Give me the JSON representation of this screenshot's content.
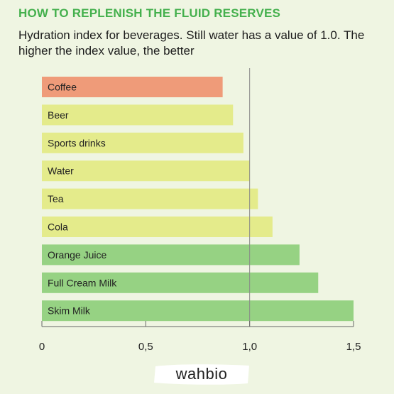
{
  "chart_data": {
    "type": "bar",
    "orientation": "horizontal",
    "title": "HOW TO REPLENISH THE FLUID RESERVES",
    "subtitle": "Hydration index for beverages. Still water has a value of 1.0. The higher the index value, the better",
    "categories": [
      "Coffee",
      "Beer",
      "Sports drinks",
      "Water",
      "Tea",
      "Cola",
      "Orange Juice",
      "Full Cream Milk",
      "Skim Milk"
    ],
    "values": [
      0.87,
      0.92,
      0.97,
      1.0,
      1.04,
      1.11,
      1.24,
      1.33,
      1.5
    ],
    "xlim": [
      0,
      1.5
    ],
    "xticks": [
      0,
      0.5,
      1.0,
      1.5
    ],
    "xtick_labels": [
      "0",
      "0,5",
      "1,0",
      "1,5"
    ],
    "reference_line": 1.0,
    "grid": false,
    "colors": {
      "lower": "#ef9b79",
      "similar": "#e4eb8b",
      "higher": "#96d283",
      "axis": "#666666",
      "reference": "#888888"
    },
    "bar_color_groups": [
      "lower",
      "similar",
      "similar",
      "similar",
      "similar",
      "similar",
      "higher",
      "higher",
      "higher"
    ]
  },
  "logo": {
    "text": "wahbio"
  }
}
